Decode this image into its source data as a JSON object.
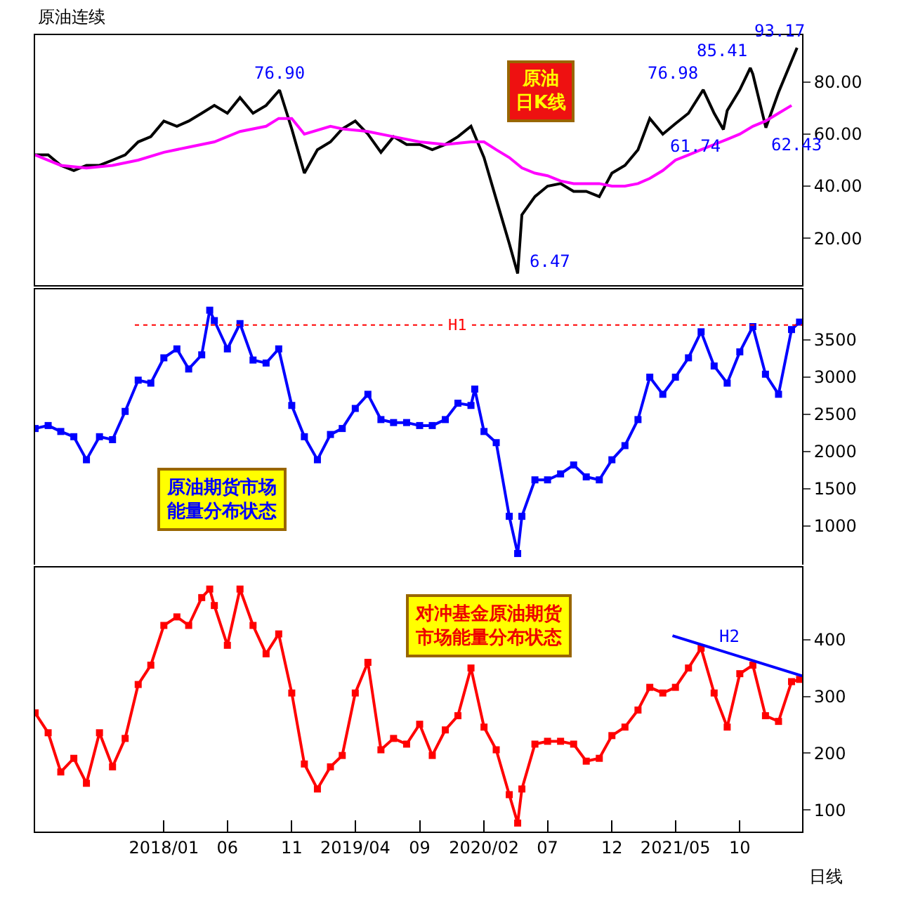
{
  "chart_data": [
    {
      "type": "line",
      "title": "原油连续",
      "tick_labels": "y",
      "grid": false,
      "marker": "none",
      "xlim": [
        "2017-03-01",
        "2022-02-26"
      ],
      "ylim": [
        2,
        98
      ],
      "yticks": [
        {
          "value": 20,
          "label": "20.00"
        },
        {
          "value": 40,
          "label": "40.00"
        },
        {
          "value": 60,
          "label": "60.00"
        },
        {
          "value": 80,
          "label": "80.00"
        }
      ],
      "series": [
        {
          "color": "#000000",
          "x": [
            "2017-03",
            "2017-04",
            "2017-05",
            "2017-06",
            "2017-07",
            "2017-08",
            "2017-09",
            "2017-10",
            "2017-11",
            "2017-12",
            "2018-01",
            "2018-02",
            "2018-03",
            "2018-04",
            "2018-05",
            "2018-06",
            "2018-07",
            "2018-08",
            "2018-09",
            "2018-10-03",
            "2018-11",
            "2018-12",
            "2019-01",
            "2019-02",
            "2019-03",
            "2019-04",
            "2019-05",
            "2019-06",
            "2019-07",
            "2019-08",
            "2019-09",
            "2019-10",
            "2019-11",
            "2019-12",
            "2020-01",
            "2020-02",
            "2020-03",
            "2020-04",
            "2020-04-21",
            "2020-05",
            "2020-06",
            "2020-07",
            "2020-08",
            "2020-09",
            "2020-10",
            "2020-11",
            "2020-12",
            "2021-01",
            "2021-02",
            "2021-03",
            "2021-04",
            "2021-05",
            "2021-06",
            "2021-07-06",
            "2021-08",
            "2021-08-23",
            "2021-09",
            "2021-10",
            "2021-10-26",
            "2021-11",
            "2021-12-02",
            "2022-01",
            "2022-02-14"
          ],
          "values": [
            52,
            52,
            48,
            46,
            48,
            48,
            50,
            52,
            57,
            59,
            65,
            63,
            65,
            68,
            71,
            68,
            74,
            68,
            71,
            76.9,
            62,
            45,
            54,
            57,
            62,
            65,
            60,
            53,
            59,
            56,
            56,
            54,
            56,
            59,
            63,
            51,
            35,
            18,
            6.47,
            29,
            36,
            40,
            41,
            38,
            38,
            36,
            45,
            48,
            54,
            66,
            60,
            64,
            68,
            76.98,
            68,
            61.74,
            69,
            77,
            85.41,
            83,
            62.43,
            76,
            93.17
          ]
        },
        {
          "color": "#ff00ff",
          "x": [
            "2017-03",
            "2017-05",
            "2017-07",
            "2017-09",
            "2017-11",
            "2018-01",
            "2018-03",
            "2018-05",
            "2018-07",
            "2018-09",
            "2018-10",
            "2018-11",
            "2018-12",
            "2019-02",
            "2019-03",
            "2019-05",
            "2019-07",
            "2019-09",
            "2019-11",
            "2020-01",
            "2020-02",
            "2020-03",
            "2020-04",
            "2020-05",
            "2020-06",
            "2020-07",
            "2020-08",
            "2020-09",
            "2020-10",
            "2020-11",
            "2020-12",
            "2021-01",
            "2021-02",
            "2021-03",
            "2021-04",
            "2021-05",
            "2021-06",
            "2021-07",
            "2021-08",
            "2021-09",
            "2021-10",
            "2021-11",
            "2021-12",
            "2022-01",
            "2022-02"
          ],
          "values": [
            52,
            48,
            47,
            48,
            50,
            53,
            55,
            57,
            61,
            63,
            66,
            66,
            60,
            63,
            62,
            61,
            59,
            57,
            56,
            57,
            57,
            54,
            51,
            47,
            45,
            44,
            42,
            41,
            41,
            41,
            40,
            40,
            41,
            43,
            46,
            50,
            52,
            54,
            56,
            58,
            60,
            63,
            65,
            68,
            71
          ]
        }
      ],
      "annotations": [
        {
          "text": "76.90",
          "x": "2018-10-03",
          "y": 76.9
        },
        {
          "text": "6.47",
          "x": "2020-04-21",
          "y": 6.47
        },
        {
          "text": "76.98",
          "x": "2021-07-06",
          "y": 76.98
        },
        {
          "text": "85.41",
          "x": "2021-10-26",
          "y": 85.41
        },
        {
          "text": "61.74",
          "x": "2021-08-23",
          "y": 61.74
        },
        {
          "text": "62.43",
          "x": "2021-12-02",
          "y": 62.43
        },
        {
          "text": "93.17",
          "x": "2022-02-14",
          "y": 93.17
        },
        "原油日K线"
      ]
    },
    {
      "type": "line",
      "tick_labels": "y",
      "grid": false,
      "marker": "square",
      "xlim": [
        "2017-03-01",
        "2022-02-26"
      ],
      "ylim": [
        480,
        4180
      ],
      "yticks": [
        1000,
        1500,
        2000,
        2500,
        3000,
        3500
      ],
      "series": [
        {
          "color": "#0000ff",
          "x": [
            "2017-03",
            "2017-04",
            "2017-05",
            "2017-06",
            "2017-07",
            "2017-08",
            "2017-09",
            "2017-10",
            "2017-11",
            "2017-12",
            "2018-01",
            "2018-02",
            "2018-03",
            "2018-04",
            "2018-04-20",
            "2018-05",
            "2018-06",
            "2018-07",
            "2018-08",
            "2018-09",
            "2018-10",
            "2018-11",
            "2018-12",
            "2019-01",
            "2019-02",
            "2019-03",
            "2019-04",
            "2019-05",
            "2019-06",
            "2019-07",
            "2019-08",
            "2019-09",
            "2019-10",
            "2019-11",
            "2019-12",
            "2020-01",
            "2020-01-10",
            "2020-02",
            "2020-03",
            "2020-04",
            "2020-04-21",
            "2020-05",
            "2020-06",
            "2020-07",
            "2020-08",
            "2020-09",
            "2020-10",
            "2020-11",
            "2020-12",
            "2021-01",
            "2021-02",
            "2021-03",
            "2021-04",
            "2021-05",
            "2021-06",
            "2021-07",
            "2021-08",
            "2021-09",
            "2021-10",
            "2021-11",
            "2021-12",
            "2022-01",
            "2022-02",
            "2022-02-20"
          ],
          "values": [
            2310,
            2350,
            2270,
            2200,
            1890,
            2200,
            2160,
            2540,
            2960,
            2920,
            3260,
            3380,
            3110,
            3300,
            3900,
            3760,
            3380,
            3720,
            3230,
            3190,
            3380,
            2620,
            2200,
            1890,
            2230,
            2310,
            2580,
            2770,
            2430,
            2390,
            2390,
            2350,
            2350,
            2430,
            2650,
            2620,
            2840,
            2270,
            2120,
            1130,
            630,
            1130,
            1620,
            1620,
            1700,
            1820,
            1660,
            1620,
            1890,
            2080,
            2430,
            3000,
            2770,
            3000,
            3260,
            3610,
            3150,
            2920,
            3340,
            3680,
            3040,
            2770,
            3640,
            3740
          ]
        }
      ],
      "ref_lines": [
        {
          "axis": "y",
          "value": 3700,
          "label": "H1",
          "color": "#ff0000",
          "line_style": "dotted"
        }
      ],
      "annotations": [
        "原油期货市场能量分布状态"
      ]
    },
    {
      "type": "line",
      "grid": false,
      "marker": "square",
      "xlim": [
        "2017-03-01",
        "2022-02-26"
      ],
      "xticks": [
        {
          "value": "2018-01",
          "label": "2018/01"
        },
        {
          "value": "2018-06",
          "label": "06"
        },
        {
          "value": "2018-11",
          "label": "11"
        },
        {
          "value": "2019-04",
          "label": "2019/04"
        },
        {
          "value": "2019-09",
          "label": "09"
        },
        {
          "value": "2020-02",
          "label": "2020/02"
        },
        {
          "value": "2020-07",
          "label": "07"
        },
        {
          "value": "2020-12",
          "label": "12"
        },
        {
          "value": "2021-05",
          "label": "2021/05"
        },
        {
          "value": "2021-10",
          "label": "10"
        }
      ],
      "ylim": [
        62,
        527
      ],
      "yticks": [
        100,
        200,
        300,
        400
      ],
      "series": [
        {
          "color": "#ff0000",
          "x": [
            "2017-03",
            "2017-04",
            "2017-05",
            "2017-06",
            "2017-07",
            "2017-08",
            "2017-09",
            "2017-10",
            "2017-11",
            "2017-12",
            "2018-01",
            "2018-02",
            "2018-03",
            "2018-04",
            "2018-04-20",
            "2018-05",
            "2018-06",
            "2018-07",
            "2018-08",
            "2018-09",
            "2018-10",
            "2018-11",
            "2018-12",
            "2019-01",
            "2019-02",
            "2019-03",
            "2019-04",
            "2019-05",
            "2019-06",
            "2019-07",
            "2019-08",
            "2019-09",
            "2019-10",
            "2019-11",
            "2019-12",
            "2020-01",
            "2020-02",
            "2020-03",
            "2020-04",
            "2020-04-21",
            "2020-05",
            "2020-06",
            "2020-07",
            "2020-08",
            "2020-09",
            "2020-10",
            "2020-11",
            "2020-12",
            "2021-01",
            "2021-02",
            "2021-03",
            "2021-04",
            "2021-05",
            "2021-06",
            "2021-07",
            "2021-08",
            "2021-09",
            "2021-10",
            "2021-11",
            "2021-12",
            "2022-01",
            "2022-02",
            "2022-02-20"
          ],
          "values": [
            271,
            236,
            167,
            191,
            147,
            236,
            176,
            226,
            321,
            355,
            425,
            440,
            425,
            474,
            489,
            460,
            390,
            489,
            425,
            375,
            410,
            306,
            181,
            137,
            176,
            196,
            306,
            360,
            206,
            226,
            216,
            251,
            196,
            241,
            266,
            350,
            246,
            206,
            127,
            77,
            137,
            216,
            221,
            221,
            216,
            186,
            191,
            231,
            246,
            276,
            316,
            306,
            316,
            350,
            385,
            306,
            246,
            340,
            355,
            266,
            256,
            326,
            330
          ]
        },
        {
          "type": "line",
          "marker": "none",
          "color": "#0000ff",
          "x": [
            "2021-04-24",
            "2022-02-26"
          ],
          "values": [
            407,
            336
          ]
        }
      ],
      "annotations": [
        {
          "text": "H2",
          "x": "2021-09-06",
          "y": 375
        },
        "对冲基金原油期货市场能量分布状态",
        "日线"
      ]
    }
  ]
}
